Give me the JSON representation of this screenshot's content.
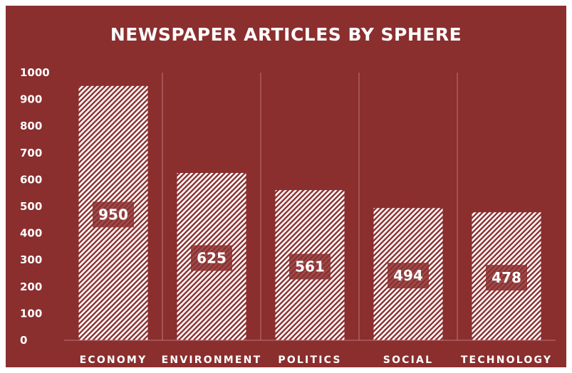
{
  "colors": {
    "background": "#8b2e2e",
    "bar_hatch": "#ffffff",
    "label_box": "#8b2e2e",
    "gridline": "#b8777a"
  },
  "chart_data": {
    "type": "bar",
    "title": "NEWSPAPER ARTICLES BY SPHERE",
    "categories": [
      "ECONOMY",
      "ENVIRONMENT",
      "POLITICS",
      "SOCIAL",
      "TECHNOLOGY"
    ],
    "values": [
      950,
      625,
      561,
      494,
      478
    ],
    "ylim": [
      0,
      1000
    ],
    "yticks": [
      0,
      100,
      200,
      300,
      400,
      500,
      600,
      700,
      800,
      900,
      1000
    ],
    "data_labels": [
      "950",
      "625",
      "561",
      "494",
      "478"
    ],
    "bar_fill": "diagonal-hatch",
    "grid": "vertical-separators",
    "legend": "none"
  }
}
